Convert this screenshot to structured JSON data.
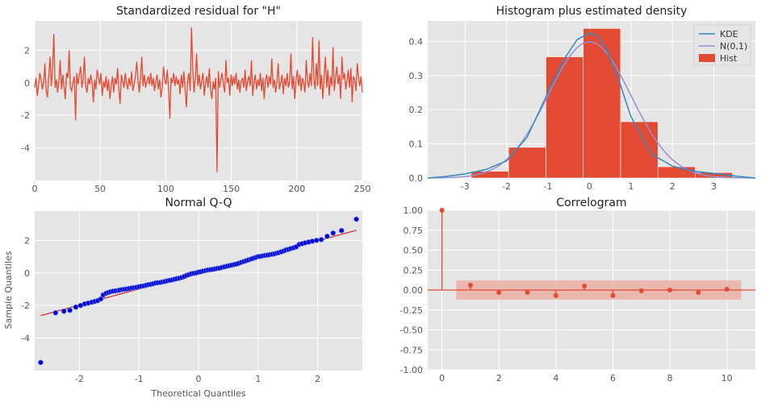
{
  "colors": {
    "panel_bg": "#e5e5e5",
    "grid": "#ffffff",
    "series_red": "#e24a33",
    "kde_blue": "#348abd",
    "normal_purple": "#988ed5",
    "qq_points": "#0000cc",
    "band": "#e9a79b",
    "text": "#555555"
  },
  "chart_data": [
    {
      "id": "std-resid",
      "type": "line",
      "title": "Standardized residual for \"H\"",
      "xlabel": "",
      "ylabel": "",
      "xlim": [
        0,
        250
      ],
      "ylim": [
        -6.0,
        3.8
      ],
      "xticks": [
        0,
        50,
        100,
        150,
        200,
        250
      ],
      "yticks": [
        -4,
        -2,
        0,
        2
      ],
      "grid": true,
      "spike": {
        "x": 144,
        "y": -5.5
      },
      "series": [
        {
          "values": [
            -0.3,
            0.3,
            -0.8,
            -0.2,
            0.6,
            0.2,
            -0.4,
            0.0,
            1.2,
            -0.5,
            -0.9,
            0.4,
            1.6,
            -0.2,
            0.9,
            3.0,
            -0.3,
            0.2,
            -0.6,
            0.1,
            1.4,
            -0.4,
            0.5,
            -0.2,
            -1.0,
            0.6,
            0.3,
            2.0,
            -0.3,
            -0.5,
            0.0,
            0.4,
            -2.3,
            0.6,
            -0.1,
            0.5,
            1.0,
            -0.3,
            0.2,
            1.6,
            -0.2,
            -0.6,
            0.3,
            -0.1,
            0.5,
            0.0,
            -1.2,
            0.2,
            -0.4,
            0.8,
            0.3,
            -0.1,
            0.6,
            -0.8,
            0.1,
            -0.3,
            0.4,
            -0.5,
            0.2,
            -1.0,
            -0.2,
            0.4,
            -0.6,
            0.3,
            -0.1,
            0.9,
            -0.4,
            -1.3,
            0.5,
            0.1,
            -0.3,
            0.6,
            0.0,
            -0.4,
            0.3,
            -0.2,
            0.7,
            -0.5,
            -0.1,
            0.4,
            1.3,
            0.2,
            -0.6,
            0.3,
            1.6,
            -0.2,
            0.5,
            -0.3,
            0.1,
            0.4,
            -0.1,
            0.6,
            -0.2,
            0.3,
            -0.5,
            0.1,
            0.5,
            -0.4,
            0.2,
            -0.9,
            -0.3,
            1.0,
            0.2,
            -0.1,
            0.8,
            -0.4,
            -2.2,
            0.3,
            0.0,
            0.6,
            -0.2,
            0.4,
            -0.1,
            0.2,
            -0.7,
            0.5,
            -0.3,
            0.7,
            -0.4,
            -1.5,
            0.2,
            0.6,
            -0.5,
            3.4,
            0.8,
            -0.6,
            0.3,
            1.8,
            -0.2,
            0.5,
            -0.4,
            0.1,
            0.6,
            -0.8,
            0.0,
            0.4,
            -0.3,
            0.9,
            -0.5,
            -1.0,
            0.1,
            -0.4,
            0.3,
            -5.5,
            0.7,
            -0.3,
            0.2,
            0.6,
            -0.1,
            -0.6,
            1.4,
            0.0,
            0.3,
            -0.8,
            0.5,
            -0.2,
            0.4,
            -0.1,
            0.6,
            -0.4,
            0.2,
            -0.6,
            0.1,
            0.3,
            -0.3,
            0.8,
            -0.5,
            0.1,
            0.4,
            -0.2,
            1.4,
            -0.8,
            0.0,
            0.5,
            -0.4,
            0.2,
            -0.2,
            0.6,
            -0.5,
            0.3,
            -1.0,
            0.2,
            0.5,
            -0.3,
            0.4,
            -0.1,
            1.5,
            -0.3,
            0.2,
            -0.6,
            0.1,
            1.2,
            -0.4,
            0.0,
            0.5,
            -0.7,
            0.3,
            -0.2,
            0.6,
            -0.3,
            0.1,
            1.8,
            -0.4,
            0.4,
            -1.0,
            0.2,
            0.8,
            -0.2,
            0.5,
            -0.5,
            0.3,
            0.0,
            -0.6,
            1.4,
            0.1,
            -0.3,
            0.6,
            -0.2,
            2.8,
            0.2,
            -0.4,
            1.2,
            -0.2,
            2.6,
            -0.4,
            0.5,
            -1.0,
            0.3,
            1.6,
            -0.3,
            0.8,
            -0.8,
            0.4,
            -0.2,
            2.2,
            -0.5,
            0.3,
            1.0,
            -0.1,
            0.5,
            -1.0,
            1.6,
            0.2,
            0.6,
            -0.4,
            0.1,
            0.8,
            -0.3,
            0.9,
            -1.2,
            0.4,
            0.2,
            -0.5,
            1.2,
            0.3,
            -0.2,
            0.4,
            -0.6
          ]
        }
      ]
    },
    {
      "id": "hist-density",
      "type": "bar",
      "title": "Histogram plus estimated density",
      "xlim": [
        -3.9,
        4.0
      ],
      "ylim": [
        0,
        0.46
      ],
      "xticks": [
        -3,
        -2,
        -1,
        0,
        1,
        2,
        3
      ],
      "yticks": [
        0.0,
        0.1,
        0.2,
        0.3,
        0.4
      ],
      "grid": true,
      "legend": "top-right",
      "bin_edges": [
        -2.85,
        -1.95,
        -1.05,
        -0.15,
        0.75,
        1.65,
        2.55,
        3.45
      ],
      "bin_heights": [
        0.02,
        0.09,
        0.355,
        0.438,
        0.165,
        0.033,
        0.016
      ],
      "kde": {
        "x": [
          -3.9,
          -3.5,
          -3.0,
          -2.5,
          -2.0,
          -1.5,
          -1.0,
          -0.6,
          -0.3,
          0.0,
          0.2,
          0.4,
          0.7,
          1.0,
          1.5,
          2.0,
          2.5,
          3.0,
          3.5,
          4.0
        ],
        "y": [
          0.0,
          0.004,
          0.012,
          0.025,
          0.05,
          0.12,
          0.25,
          0.35,
          0.405,
          0.425,
          0.415,
          0.38,
          0.29,
          0.18,
          0.07,
          0.035,
          0.02,
          0.014,
          0.006,
          0.0
        ]
      },
      "series": [
        {
          "name": "KDE",
          "role": "line"
        },
        {
          "name": "N(0,1)",
          "role": "line"
        },
        {
          "name": "Hist",
          "role": "bar"
        }
      ]
    },
    {
      "id": "qq",
      "type": "scatter",
      "title": "Normal Q-Q",
      "xlabel": "Theoretical Quantiles",
      "ylabel": "Sample Quantiles",
      "xlim": [
        -2.75,
        2.75
      ],
      "ylim": [
        -6.0,
        3.8
      ],
      "xticks": [
        -2,
        -1,
        0,
        1,
        2
      ],
      "yticks": [
        -4,
        -2,
        0,
        2
      ],
      "grid": true,
      "ref_line": [
        [
          -2.65,
          -2.62
        ],
        [
          2.65,
          2.62
        ]
      ],
      "points_x": [
        -2.65,
        -2.4,
        -2.26,
        -2.16,
        -2.06,
        -1.98,
        -1.91,
        -1.85,
        -1.79,
        -1.74,
        -1.69,
        -1.64,
        -1.6,
        -1.55,
        -1.51,
        -1.47,
        -1.43,
        -1.39,
        -1.35,
        -1.32,
        -1.28,
        -1.24,
        -1.2,
        -1.16,
        -1.12,
        -1.08,
        -1.04,
        -1.0,
        -0.96,
        -0.92,
        -0.88,
        -0.84,
        -0.8,
        -0.76,
        -0.72,
        -0.68,
        -0.64,
        -0.6,
        -0.56,
        -0.52,
        -0.48,
        -0.44,
        -0.4,
        -0.36,
        -0.32,
        -0.28,
        -0.24,
        -0.2,
        -0.16,
        -0.12,
        -0.08,
        -0.04,
        0.0,
        0.04,
        0.08,
        0.12,
        0.16,
        0.2,
        0.24,
        0.28,
        0.32,
        0.36,
        0.4,
        0.44,
        0.48,
        0.52,
        0.56,
        0.6,
        0.64,
        0.68,
        0.72,
        0.76,
        0.8,
        0.84,
        0.88,
        0.92,
        0.96,
        1.0,
        1.04,
        1.08,
        1.12,
        1.16,
        1.2,
        1.24,
        1.28,
        1.32,
        1.35,
        1.39,
        1.43,
        1.47,
        1.51,
        1.55,
        1.6,
        1.64,
        1.69,
        1.74,
        1.79,
        1.85,
        1.91,
        1.98,
        2.06,
        2.16,
        2.26,
        2.4,
        2.65
      ],
      "points_y": [
        -5.5,
        -2.45,
        -2.35,
        -2.3,
        -2.1,
        -2.0,
        -1.9,
        -1.85,
        -1.8,
        -1.75,
        -1.7,
        -1.6,
        -1.35,
        -1.25,
        -1.2,
        -1.15,
        -1.12,
        -1.1,
        -1.08,
        -1.05,
        -1.02,
        -1.0,
        -0.98,
        -0.95,
        -0.92,
        -0.9,
        -0.88,
        -0.85,
        -0.82,
        -0.8,
        -0.76,
        -0.72,
        -0.7,
        -0.66,
        -0.62,
        -0.6,
        -0.58,
        -0.55,
        -0.52,
        -0.48,
        -0.45,
        -0.42,
        -0.38,
        -0.35,
        -0.32,
        -0.28,
        -0.22,
        -0.15,
        -0.1,
        -0.05,
        -0.02,
        0.0,
        0.05,
        0.08,
        0.12,
        0.15,
        0.18,
        0.2,
        0.22,
        0.25,
        0.28,
        0.3,
        0.35,
        0.38,
        0.42,
        0.45,
        0.48,
        0.52,
        0.55,
        0.6,
        0.65,
        0.7,
        0.75,
        0.8,
        0.85,
        0.9,
        0.95,
        1.0,
        1.02,
        1.05,
        1.08,
        1.1,
        1.12,
        1.15,
        1.18,
        1.22,
        1.25,
        1.3,
        1.35,
        1.42,
        1.45,
        1.5,
        1.55,
        1.6,
        1.75,
        1.8,
        1.85,
        1.9,
        1.95,
        2.0,
        2.05,
        2.25,
        2.45,
        2.6,
        3.3
      ]
    },
    {
      "id": "correlogram",
      "type": "bar",
      "title": "Correlogram",
      "xlim": [
        -0.5,
        11.0
      ],
      "ylim": [
        -1.0,
        1.0
      ],
      "xticks": [
        0,
        2,
        4,
        6,
        8,
        10
      ],
      "yticks": [
        -1.0,
        -0.75,
        -0.5,
        -0.25,
        0.0,
        0.25,
        0.5,
        0.75,
        1.0
      ],
      "grid": true,
      "lags": [
        0,
        1,
        2,
        3,
        4,
        5,
        6,
        7,
        8,
        9,
        10
      ],
      "acf": [
        1.0,
        0.06,
        -0.03,
        -0.03,
        -0.07,
        0.05,
        -0.07,
        -0.01,
        0.0,
        -0.03,
        0.01
      ],
      "conf_band": {
        "x": [
          0.5,
          10.5
        ],
        "upper": 0.12,
        "lower": -0.12
      }
    }
  ]
}
